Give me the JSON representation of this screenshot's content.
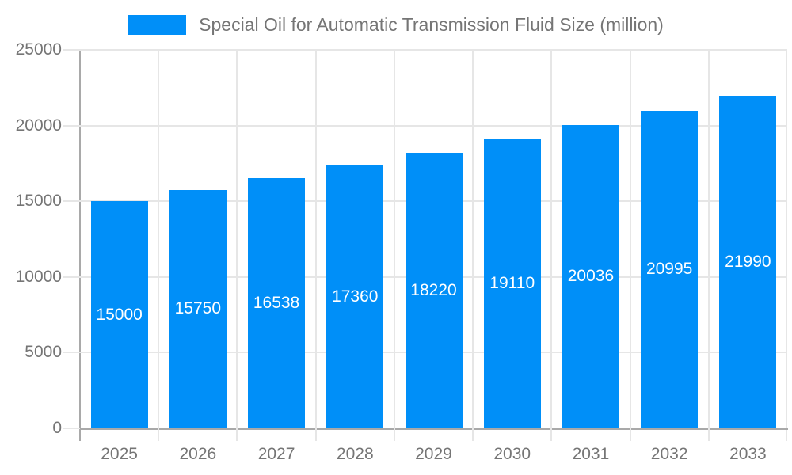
{
  "colors": {
    "bar": "#008ff8",
    "grid": "#e6e6e6",
    "axis": "#a9a9a9",
    "text": "#757575",
    "bar_label": "#ffffff",
    "background": "#ffffff"
  },
  "legend": {
    "position": "top",
    "label": "Special Oil for Automatic Transmission Fluid Size (million)"
  },
  "chart_data": {
    "type": "bar",
    "title": "Special Oil for Automatic Transmission Fluid Size (million)",
    "series_name": "Special Oil for Automatic Transmission Fluid Size (million)",
    "categories": [
      "2025",
      "2026",
      "2027",
      "2028",
      "2029",
      "2030",
      "2031",
      "2032",
      "2033"
    ],
    "values": [
      15000,
      15750,
      16538,
      17360,
      18220,
      19110,
      20036,
      20995,
      21990
    ],
    "bar_value_labels": [
      "15000",
      "15750",
      "16538",
      "17360",
      "18220",
      "19110",
      "20036",
      "20995",
      "21990"
    ],
    "xlabel": "",
    "ylabel": "",
    "ylim": [
      0,
      25000
    ],
    "y_ticks": [
      0,
      5000,
      10000,
      15000,
      20000,
      25000
    ],
    "y_tick_labels": [
      "0",
      "5000",
      "10000",
      "15000",
      "20000",
      "25000"
    ],
    "grid": true,
    "legend_position": "top",
    "value_labels_inside_bars": true
  }
}
